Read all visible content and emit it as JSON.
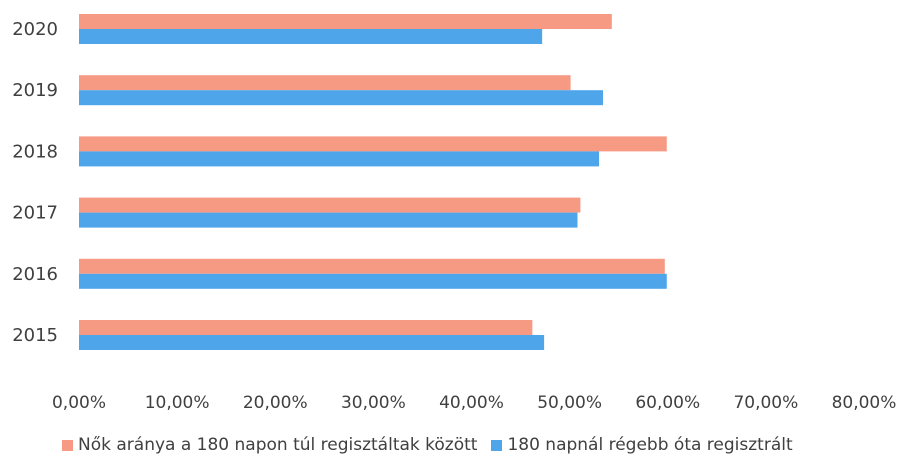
{
  "chart_data": {
    "type": "bar",
    "orientation": "horizontal",
    "categories": [
      "2015",
      "2016",
      "2017",
      "2018",
      "2019",
      "2020"
    ],
    "series": [
      {
        "name": "Nők aránya a 180 napon túl regisztáltak között",
        "color": "#f79a84",
        "values": [
          46.2,
          59.7,
          51.1,
          59.9,
          50.1,
          54.3
        ]
      },
      {
        "name": "180 napnál régebb óta regisztrált",
        "color": "#4ea5ea",
        "values": [
          47.4,
          59.9,
          50.8,
          53.0,
          53.4,
          47.2
        ]
      }
    ],
    "xaxis": {
      "range": [
        0,
        80
      ],
      "tick_labels": [
        "0,00%",
        "10,00%",
        "20,00%",
        "30,00%",
        "40,00%",
        "50,00%",
        "60,00%",
        "70,00%",
        "80,00%"
      ]
    },
    "grid": false,
    "legend_position": "bottom"
  }
}
